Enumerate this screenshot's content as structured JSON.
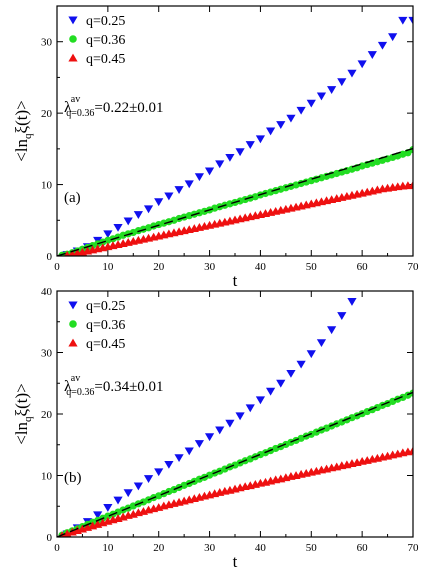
{
  "chart_data": [
    {
      "panel_label": "(a)",
      "type": "scatter",
      "xlabel": "t",
      "ylabel": "<ln_q ξ(t)>",
      "xlim": [
        0,
        70
      ],
      "ylim": [
        0,
        35
      ],
      "xticks": [
        0,
        10,
        20,
        30,
        40,
        50,
        60,
        70
      ],
      "yticks": [
        0,
        10,
        20,
        30
      ],
      "legend_position": "top-left",
      "annotation": {
        "lambda": "λ",
        "sup": "av",
        "sub": "q=0.36",
        "value": "=0.22±0.01"
      },
      "fit_line": {
        "slope": 0.215,
        "x": [
          0,
          70
        ],
        "style": "dashed",
        "color": "#000000"
      },
      "series": [
        {
          "name": "q=0.25",
          "marker": "triangle-down",
          "color": "#1010ee",
          "x": [
            2,
            4,
            6,
            8,
            10,
            12,
            14,
            16,
            18,
            20,
            22,
            24,
            26,
            28,
            30,
            32,
            34,
            36,
            38,
            40,
            42,
            44,
            46,
            48,
            50,
            52,
            54,
            56,
            58,
            60,
            62,
            64,
            66,
            68,
            70
          ],
          "y": [
            0.2,
            0.7,
            1.3,
            2.2,
            3.1,
            4.0,
            4.9,
            5.8,
            6.6,
            7.6,
            8.4,
            9.3,
            10.1,
            11.1,
            11.9,
            12.9,
            13.8,
            14.6,
            15.6,
            16.4,
            17.5,
            18.4,
            19.3,
            20.4,
            21.4,
            22.4,
            23.3,
            24.4,
            25.6,
            26.9,
            28.2,
            29.5,
            30.7,
            33.0,
            33.0
          ]
        },
        {
          "name": "q=0.36",
          "marker": "circle",
          "color": "#22dd22",
          "x": [
            1,
            2,
            3,
            4,
            5,
            6,
            7,
            8,
            9,
            10,
            11,
            12,
            13,
            14,
            15,
            16,
            17,
            18,
            19,
            20,
            21,
            22,
            23,
            24,
            25,
            26,
            27,
            28,
            29,
            30,
            31,
            32,
            33,
            34,
            35,
            36,
            37,
            38,
            39,
            40,
            41,
            42,
            43,
            44,
            45,
            46,
            47,
            48,
            49,
            50,
            51,
            52,
            53,
            54,
            55,
            56,
            57,
            58,
            59,
            60,
            61,
            62,
            63,
            64,
            65,
            66,
            67,
            68,
            69,
            70
          ],
          "y": [
            0.1,
            0.25,
            0.45,
            0.7,
            0.95,
            1.2,
            1.45,
            1.7,
            1.95,
            2.2,
            2.4,
            2.65,
            2.9,
            3.1,
            3.3,
            3.55,
            3.75,
            3.95,
            4.2,
            4.4,
            4.6,
            4.8,
            5.0,
            5.25,
            5.45,
            5.65,
            5.85,
            6.05,
            6.25,
            6.45,
            6.7,
            6.9,
            7.1,
            7.3,
            7.5,
            7.7,
            7.9,
            8.1,
            8.3,
            8.55,
            8.75,
            8.95,
            9.15,
            9.35,
            9.55,
            9.75,
            9.95,
            10.15,
            10.35,
            10.55,
            10.75,
            10.95,
            11.15,
            11.35,
            11.55,
            11.75,
            11.95,
            12.15,
            12.35,
            12.6,
            12.8,
            13.0,
            13.2,
            13.4,
            13.6,
            13.8,
            14.0,
            14.25,
            14.45,
            14.9
          ]
        },
        {
          "name": "q=0.45",
          "marker": "triangle-up",
          "color": "#ee1010",
          "x": [
            2,
            3,
            4,
            5,
            6,
            7,
            8,
            9,
            10,
            11,
            12,
            13,
            14,
            15,
            16,
            17,
            18,
            19,
            20,
            21,
            22,
            23,
            24,
            25,
            26,
            27,
            28,
            29,
            30,
            31,
            32,
            33,
            34,
            35,
            36,
            37,
            38,
            39,
            40,
            41,
            42,
            43,
            44,
            45,
            46,
            47,
            48,
            49,
            50,
            51,
            52,
            53,
            54,
            55,
            56,
            57,
            58,
            59,
            60,
            61,
            62,
            63,
            64,
            65,
            66,
            67,
            68,
            69,
            70
          ],
          "y": [
            0.1,
            0.25,
            0.4,
            0.55,
            0.7,
            0.85,
            1.0,
            1.15,
            1.3,
            1.45,
            1.6,
            1.75,
            1.9,
            2.05,
            2.2,
            2.35,
            2.5,
            2.65,
            2.8,
            2.95,
            3.1,
            3.25,
            3.4,
            3.55,
            3.7,
            3.85,
            4.0,
            4.15,
            4.3,
            4.45,
            4.6,
            4.75,
            4.9,
            5.05,
            5.2,
            5.35,
            5.5,
            5.65,
            5.8,
            5.95,
            6.1,
            6.25,
            6.4,
            6.55,
            6.7,
            6.85,
            7.0,
            7.15,
            7.3,
            7.45,
            7.6,
            7.75,
            7.9,
            8.05,
            8.2,
            8.35,
            8.5,
            8.65,
            8.8,
            8.95,
            9.1,
            9.25,
            9.4,
            9.5,
            9.6,
            9.7,
            9.8,
            9.85,
            9.9
          ]
        }
      ]
    },
    {
      "panel_label": "(b)",
      "type": "scatter",
      "xlabel": "t",
      "ylabel": "<ln_q ξ(t)>",
      "xlim": [
        0,
        70
      ],
      "ylim": [
        0,
        40
      ],
      "xticks": [
        0,
        10,
        20,
        30,
        40,
        50,
        60,
        70
      ],
      "yticks": [
        0,
        10,
        20,
        30,
        40
      ],
      "legend_position": "top-left",
      "annotation": {
        "lambda": "λ",
        "sup": "av",
        "sub": "q=0.36",
        "value": "=0.34±0.01"
      },
      "fit_line": {
        "slope": 0.336,
        "x": [
          0,
          70
        ],
        "style": "dashed",
        "color": "#000000"
      },
      "series": [
        {
          "name": "q=0.25",
          "marker": "triangle-down",
          "color": "#1010ee",
          "x": [
            2,
            4,
            6,
            8,
            10,
            12,
            14,
            16,
            18,
            20,
            22,
            24,
            26,
            28,
            30,
            32,
            34,
            36,
            38,
            40,
            42,
            44,
            46,
            48,
            50,
            52,
            54,
            56,
            58
          ],
          "y": [
            0.5,
            1.5,
            2.5,
            3.6,
            4.8,
            6.0,
            7.2,
            8.3,
            9.5,
            10.6,
            11.8,
            12.9,
            14.0,
            15.2,
            16.3,
            17.4,
            18.5,
            19.7,
            21.0,
            22.3,
            23.7,
            25.0,
            26.6,
            28.1,
            29.8,
            31.6,
            33.7,
            36.0,
            38.3
          ]
        },
        {
          "name": "q=0.36",
          "marker": "circle",
          "color": "#22dd22",
          "x": [
            1,
            2,
            3,
            4,
            5,
            6,
            7,
            8,
            9,
            10,
            11,
            12,
            13,
            14,
            15,
            16,
            17,
            18,
            19,
            20,
            21,
            22,
            23,
            24,
            25,
            26,
            27,
            28,
            29,
            30,
            31,
            32,
            33,
            34,
            35,
            36,
            37,
            38,
            39,
            40,
            41,
            42,
            43,
            44,
            45,
            46,
            47,
            48,
            49,
            50,
            51,
            52,
            53,
            54,
            55,
            56,
            57,
            58,
            59,
            60,
            61,
            62,
            63,
            64,
            65,
            66,
            67,
            68,
            69,
            70
          ],
          "y": [
            0.3,
            0.7,
            1.0,
            1.35,
            1.7,
            2.05,
            2.4,
            2.7,
            3.05,
            3.4,
            3.7,
            4.05,
            4.4,
            4.7,
            5.05,
            5.4,
            5.7,
            6.05,
            6.4,
            6.7,
            7.05,
            7.4,
            7.7,
            8.05,
            8.4,
            8.7,
            9.05,
            9.4,
            9.7,
            10.05,
            10.4,
            10.7,
            11.05,
            11.4,
            11.7,
            12.05,
            12.4,
            12.7,
            13.05,
            13.4,
            13.7,
            14.05,
            14.4,
            14.7,
            15.05,
            15.4,
            15.7,
            16.05,
            16.4,
            16.7,
            17.05,
            17.4,
            17.7,
            18.05,
            18.4,
            18.7,
            19.05,
            19.4,
            19.7,
            20.05,
            20.4,
            20.7,
            21.05,
            21.4,
            21.7,
            22.05,
            22.4,
            22.7,
            23.05,
            23.4
          ]
        },
        {
          "name": "q=0.45",
          "marker": "triangle-up",
          "color": "#ee1010",
          "x": [
            1,
            2,
            3,
            4,
            5,
            6,
            7,
            8,
            9,
            10,
            11,
            12,
            13,
            14,
            15,
            16,
            17,
            18,
            19,
            20,
            21,
            22,
            23,
            24,
            25,
            26,
            27,
            28,
            29,
            30,
            31,
            32,
            33,
            34,
            35,
            36,
            37,
            38,
            39,
            40,
            41,
            42,
            43,
            44,
            45,
            46,
            47,
            48,
            49,
            50,
            51,
            52,
            53,
            54,
            55,
            56,
            57,
            58,
            59,
            60,
            61,
            62,
            63,
            64,
            65,
            66,
            67,
            68,
            69,
            70
          ],
          "y": [
            0.2,
            0.5,
            0.8,
            1.05,
            1.3,
            1.55,
            1.8,
            2.05,
            2.3,
            2.55,
            2.8,
            3.0,
            3.25,
            3.5,
            3.7,
            3.95,
            4.15,
            4.4,
            4.6,
            4.8,
            5.05,
            5.25,
            5.45,
            5.65,
            5.85,
            6.05,
            6.25,
            6.45,
            6.65,
            6.85,
            7.05,
            7.25,
            7.45,
            7.6,
            7.8,
            8.0,
            8.2,
            8.35,
            8.55,
            8.75,
            8.9,
            9.1,
            9.3,
            9.45,
            9.65,
            9.85,
            10.0,
            10.2,
            10.35,
            10.55,
            10.7,
            10.9,
            11.05,
            11.25,
            11.4,
            11.6,
            11.75,
            11.95,
            12.1,
            12.3,
            12.45,
            12.65,
            12.8,
            13.0,
            13.15,
            13.35,
            13.5,
            13.7,
            13.85,
            14.0
          ]
        }
      ]
    }
  ]
}
